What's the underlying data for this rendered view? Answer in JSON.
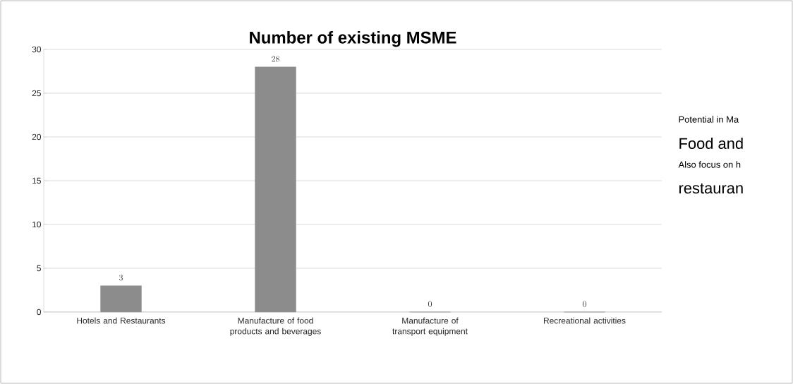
{
  "chart_data": {
    "type": "bar",
    "title": "Number of  existing MSME",
    "categories": [
      "Hotels and Restaurants",
      "Manufacture of food products and beverages",
      "Manufacture of transport equipment",
      "Recreational activities"
    ],
    "values": [
      3,
      28,
      0,
      0
    ],
    "color": "#8c8c8c",
    "data_labels": true,
    "grid": "y",
    "ylim": [
      0,
      30
    ],
    "yticks": [
      0,
      5,
      10,
      15,
      20,
      25,
      30
    ],
    "annotations": [
      "Potential in Ma",
      "Food and",
      "Also focus on h",
      "restauran"
    ]
  }
}
